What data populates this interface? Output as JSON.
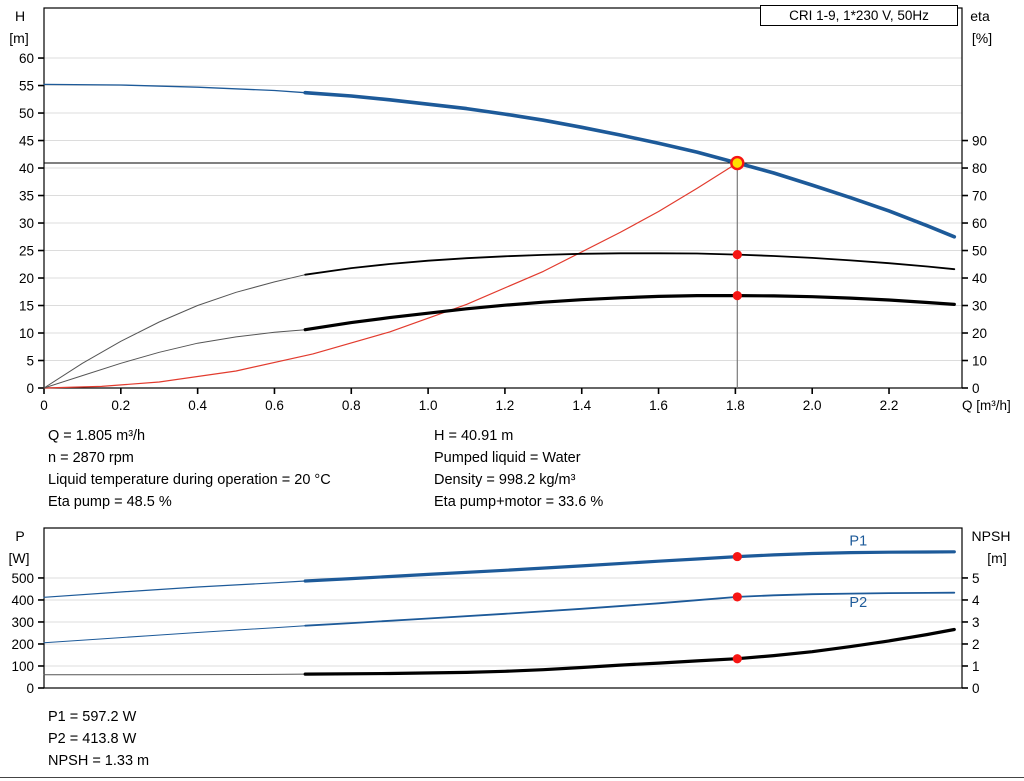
{
  "title_box": "CRI 1-9, 1*230 V, 50Hz",
  "info": {
    "left": [
      "Q = 1.805 m³/h",
      "n = 2870 rpm",
      "Liquid temperature during operation = 20 °C",
      "Eta pump = 48.5 %"
    ],
    "right": [
      "H = 40.91 m",
      "Pumped liquid = Water",
      "Density = 998.2 kg/m³",
      "Eta pump+motor = 33.6 %"
    ],
    "bottom": [
      "P1 = 597.2 W",
      "P2 = 413.8 W",
      "NPSH = 1.33 m"
    ]
  },
  "colors": {
    "blue": "#1d5a99",
    "red": "#e23b2e",
    "black": "#000000",
    "thin": "#555555",
    "grid": "#dcdcdc",
    "marker": "#f61513",
    "duty_fill": "#ffdf00",
    "crosshair_v": "#7a7a7a",
    "crosshair_h": "#000000"
  },
  "chart_data": [
    {
      "type": "line",
      "name": "hq-eta-chart",
      "title": "CRI 1-9, 1*230 V, 50Hz",
      "x_title": "Q [m³/h]",
      "left_title": [
        "H",
        "[m]"
      ],
      "right_title": [
        "eta",
        "[%]"
      ],
      "x_max": 2.39,
      "x_ticks": {
        "values": [
          0,
          0.2,
          0.4,
          0.6,
          0.8,
          1.0,
          1.2,
          1.4,
          1.6,
          1.8,
          2.0,
          2.2
        ],
        "labels": [
          "0",
          "0.2",
          "0.4",
          "0.6",
          "0.8",
          "1.0",
          "1.2",
          "1.4",
          "1.6",
          "1.8",
          "2.0",
          "2.2"
        ],
        "show_labels": true
      },
      "left": {
        "top_value": 69.1,
        "tick_values": [
          0,
          5,
          10,
          15,
          20,
          25,
          30,
          35,
          40,
          45,
          50,
          55,
          60
        ],
        "tick_labels": [
          "0",
          "5",
          "10",
          "15",
          "20",
          "25",
          "30",
          "35",
          "40",
          "45",
          "50",
          "55",
          "60"
        ]
      },
      "right": {
        "top_value": 138.2,
        "tick_values": [
          0,
          10,
          20,
          30,
          40,
          50,
          60,
          70,
          80,
          90
        ],
        "tick_labels": [
          "0",
          "10",
          "20",
          "30",
          "40",
          "50",
          "60",
          "70",
          "80",
          "90"
        ]
      },
      "crosshair": {
        "q": 1.805,
        "v": 40.91
      },
      "series": [
        {
          "name": "h-curve",
          "axis": "left",
          "color": "blue",
          "segments": [
            {
              "w": 1.3,
              "points": [
                [
                  0,
                  55.2
                ],
                [
                  0.2,
                  55.1
                ],
                [
                  0.4,
                  54.7
                ],
                [
                  0.6,
                  54.1
                ],
                [
                  0.68,
                  53.7
                ]
              ]
            },
            {
              "w": 3.6,
              "points": [
                [
                  0.68,
                  53.7
                ],
                [
                  0.8,
                  53.1
                ],
                [
                  0.9,
                  52.4
                ],
                [
                  1.0,
                  51.6
                ],
                [
                  1.1,
                  50.8
                ],
                [
                  1.2,
                  49.8
                ],
                [
                  1.3,
                  48.7
                ],
                [
                  1.4,
                  47.4
                ],
                [
                  1.5,
                  46.0
                ],
                [
                  1.6,
                  44.5
                ],
                [
                  1.7,
                  42.9
                ],
                [
                  1.805,
                  40.91
                ],
                [
                  1.9,
                  39.1
                ],
                [
                  2.0,
                  36.9
                ],
                [
                  2.1,
                  34.6
                ],
                [
                  2.2,
                  32.2
                ],
                [
                  2.3,
                  29.5
                ],
                [
                  2.37,
                  27.5
                ]
              ]
            }
          ]
        },
        {
          "name": "system-curve",
          "axis": "left",
          "color": "red",
          "segments": [
            {
              "w": 1.2,
              "points": [
                [
                  0,
                  0
                ],
                [
                  0.15,
                  0.3
                ],
                [
                  0.3,
                  1.1
                ],
                [
                  0.5,
                  3.1
                ],
                [
                  0.7,
                  6.2
                ],
                [
                  0.9,
                  10.2
                ],
                [
                  1.1,
                  15.2
                ],
                [
                  1.3,
                  21.2
                ],
                [
                  1.5,
                  28.3
                ],
                [
                  1.6,
                  32.1
                ],
                [
                  1.7,
                  36.3
                ],
                [
                  1.805,
                  40.91
                ]
              ]
            }
          ]
        },
        {
          "name": "eta-pump-curve",
          "axis": "right",
          "color": "black",
          "segments": [
            {
              "w": 1.0,
              "color": "thin",
              "points": [
                [
                  0,
                  0
                ],
                [
                  0.1,
                  9
                ],
                [
                  0.2,
                  17
                ],
                [
                  0.3,
                  24
                ],
                [
                  0.4,
                  30
                ],
                [
                  0.5,
                  34.8
                ],
                [
                  0.6,
                  38.6
                ],
                [
                  0.68,
                  41.2
                ]
              ]
            },
            {
              "w": 1.8,
              "points": [
                [
                  0.68,
                  41.2
                ],
                [
                  0.8,
                  43.6
                ],
                [
                  0.9,
                  45.1
                ],
                [
                  1.0,
                  46.3
                ],
                [
                  1.1,
                  47.2
                ],
                [
                  1.2,
                  47.9
                ],
                [
                  1.3,
                  48.4
                ],
                [
                  1.4,
                  48.8
                ],
                [
                  1.5,
                  49.0
                ],
                [
                  1.6,
                  49.0
                ],
                [
                  1.7,
                  48.9
                ],
                [
                  1.805,
                  48.5
                ],
                [
                  1.9,
                  48.0
                ],
                [
                  2.0,
                  47.3
                ],
                [
                  2.1,
                  46.4
                ],
                [
                  2.2,
                  45.4
                ],
                [
                  2.3,
                  44.2
                ],
                [
                  2.37,
                  43.2
                ]
              ]
            }
          ]
        },
        {
          "name": "eta-pump-motor-curve",
          "axis": "right",
          "color": "black",
          "segments": [
            {
              "w": 1.0,
              "color": "thin",
              "points": [
                [
                  0,
                  0
                ],
                [
                  0.1,
                  4.5
                ],
                [
                  0.2,
                  9
                ],
                [
                  0.3,
                  13
                ],
                [
                  0.4,
                  16.3
                ],
                [
                  0.5,
                  18.6
                ],
                [
                  0.6,
                  20.3
                ],
                [
                  0.68,
                  21.2
                ]
              ]
            },
            {
              "w": 3.2,
              "points": [
                [
                  0.68,
                  21.2
                ],
                [
                  0.8,
                  23.8
                ],
                [
                  0.9,
                  25.6
                ],
                [
                  1.0,
                  27.2
                ],
                [
                  1.1,
                  28.8
                ],
                [
                  1.2,
                  30.1
                ],
                [
                  1.3,
                  31.2
                ],
                [
                  1.4,
                  32.1
                ],
                [
                  1.5,
                  32.8
                ],
                [
                  1.6,
                  33.3
                ],
                [
                  1.7,
                  33.6
                ],
                [
                  1.805,
                  33.6
                ],
                [
                  1.9,
                  33.5
                ],
                [
                  2.0,
                  33.2
                ],
                [
                  2.1,
                  32.7
                ],
                [
                  2.2,
                  32.0
                ],
                [
                  2.3,
                  31.1
                ],
                [
                  2.37,
                  30.4
                ]
              ]
            }
          ]
        }
      ],
      "markers": [
        {
          "q": 1.805,
          "v": 40.91,
          "axis": "left",
          "type": "duty",
          "name": "duty-point-marker"
        },
        {
          "q": 1.805,
          "v": 48.5,
          "axis": "right",
          "type": "dot",
          "name": "eta-pump-point"
        },
        {
          "q": 1.805,
          "v": 33.6,
          "axis": "right",
          "type": "dot",
          "name": "eta-pump-motor-point"
        }
      ]
    },
    {
      "type": "line",
      "name": "power-npsh-chart",
      "left_title": [
        "P",
        "[W]"
      ],
      "right_title": [
        "NPSH",
        "[m]"
      ],
      "x_max": 2.39,
      "x_ticks": {
        "values": [],
        "labels": [],
        "show_labels": false
      },
      "left": {
        "top_value": 727,
        "tick_values": [
          0,
          100,
          200,
          300,
          400,
          500
        ],
        "tick_labels": [
          "0",
          "100",
          "200",
          "300",
          "400",
          "500"
        ]
      },
      "right": {
        "top_value": 7.27,
        "tick_values": [
          0,
          1,
          2,
          3,
          4,
          5
        ],
        "tick_labels": [
          "0",
          "1",
          "2",
          "3",
          "4",
          "5"
        ]
      },
      "series": [
        {
          "name": "p1-curve",
          "axis": "left",
          "color": "blue",
          "label": {
            "text": "P1",
            "q": 2.12,
            "v": 648
          },
          "segments": [
            {
              "w": 1.2,
              "points": [
                [
                  0,
                  412
                ],
                [
                  0.2,
                  436
                ],
                [
                  0.4,
                  459
                ],
                [
                  0.6,
                  478
                ],
                [
                  0.68,
                  486
                ]
              ]
            },
            {
              "w": 3.2,
              "points": [
                [
                  0.68,
                  486
                ],
                [
                  0.8,
                  497
                ],
                [
                  1.0,
                  516
                ],
                [
                  1.2,
                  535
                ],
                [
                  1.4,
                  555
                ],
                [
                  1.6,
                  576
                ],
                [
                  1.7,
                  586
                ],
                [
                  1.805,
                  597.2
                ],
                [
                  1.9,
                  605
                ],
                [
                  2.0,
                  611
                ],
                [
                  2.1,
                  615
                ],
                [
                  2.2,
                  617
                ],
                [
                  2.3,
                  618
                ],
                [
                  2.37,
                  619
                ]
              ]
            }
          ]
        },
        {
          "name": "p2-curve",
          "axis": "left",
          "color": "blue",
          "label": {
            "text": "P2",
            "q": 2.12,
            "v": 368
          },
          "segments": [
            {
              "w": 1.0,
              "points": [
                [
                  0,
                  206
                ],
                [
                  0.2,
                  229
                ],
                [
                  0.4,
                  252
                ],
                [
                  0.6,
                  274
                ],
                [
                  0.68,
                  283
                ]
              ]
            },
            {
              "w": 1.8,
              "points": [
                [
                  0.68,
                  283
                ],
                [
                  0.8,
                  295
                ],
                [
                  1.0,
                  316
                ],
                [
                  1.2,
                  337
                ],
                [
                  1.4,
                  360
                ],
                [
                  1.6,
                  385
                ],
                [
                  1.7,
                  399
                ],
                [
                  1.805,
                  413.8
                ],
                [
                  1.9,
                  421
                ],
                [
                  2.0,
                  426
                ],
                [
                  2.1,
                  429
                ],
                [
                  2.2,
                  431
                ],
                [
                  2.3,
                  432
                ],
                [
                  2.37,
                  433
                ]
              ]
            }
          ]
        },
        {
          "name": "npsh-curve",
          "axis": "right",
          "color": "black",
          "segments": [
            {
              "w": 1.0,
              "color": "thin",
              "points": [
                [
                  0,
                  0.6
                ],
                [
                  0.2,
                  0.6
                ],
                [
                  0.4,
                  0.61
                ],
                [
                  0.6,
                  0.62
                ],
                [
                  0.68,
                  0.63
                ]
              ]
            },
            {
              "w": 3.2,
              "points": [
                [
                  0.68,
                  0.63
                ],
                [
                  0.9,
                  0.66
                ],
                [
                  1.1,
                  0.71
                ],
                [
                  1.2,
                  0.76
                ],
                [
                  1.3,
                  0.83
                ],
                [
                  1.4,
                  0.93
                ],
                [
                  1.5,
                  1.04
                ],
                [
                  1.6,
                  1.13
                ],
                [
                  1.7,
                  1.23
                ],
                [
                  1.805,
                  1.33
                ],
                [
                  1.9,
                  1.47
                ],
                [
                  2.0,
                  1.65
                ],
                [
                  2.1,
                  1.88
                ],
                [
                  2.2,
                  2.14
                ],
                [
                  2.3,
                  2.43
                ],
                [
                  2.37,
                  2.66
                ]
              ]
            }
          ]
        }
      ],
      "markers": [
        {
          "q": 1.805,
          "v": 597.2,
          "axis": "left",
          "type": "dot",
          "name": "p1-point"
        },
        {
          "q": 1.805,
          "v": 413.8,
          "axis": "left",
          "type": "dot",
          "name": "p2-point"
        },
        {
          "q": 1.805,
          "v": 1.33,
          "axis": "right",
          "type": "dot",
          "name": "npsh-point"
        }
      ]
    }
  ]
}
